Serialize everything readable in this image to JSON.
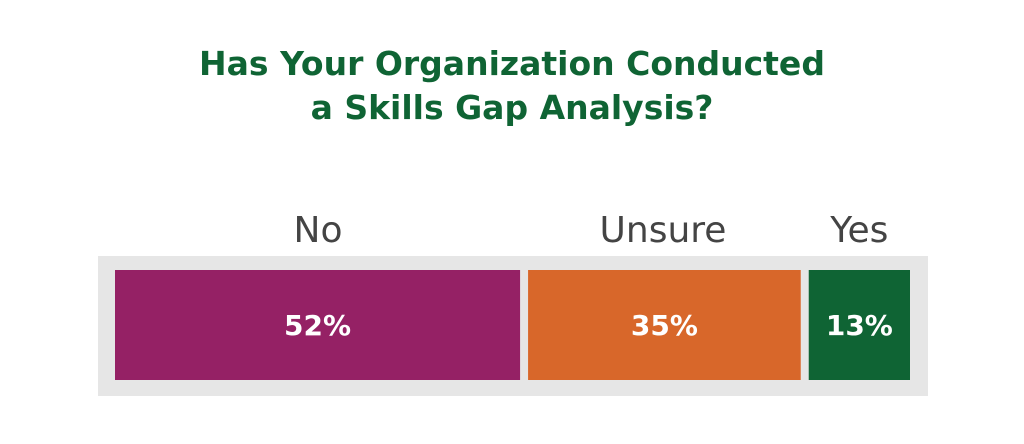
{
  "chart_data": {
    "type": "bar",
    "stacked": true,
    "orientation": "horizontal",
    "title_lines": [
      "Has Your Organization Conducted",
      "a Skills Gap Analysis?"
    ],
    "categories": [
      "No",
      "Unsure",
      "Yes"
    ],
    "values": [
      52,
      35,
      13
    ],
    "value_labels": [
      "52%",
      "35%",
      "13%"
    ],
    "colors": [
      "#952165",
      "#d8672a",
      "#0f6434"
    ],
    "track_color": "#e6e6e6",
    "grid": false,
    "legend": "none"
  }
}
